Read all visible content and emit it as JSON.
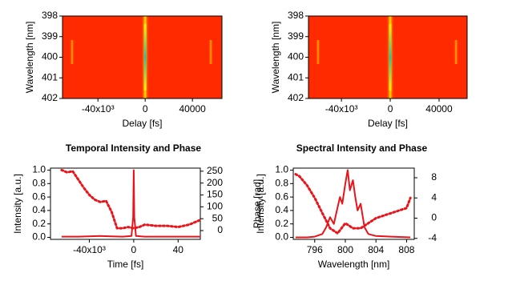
{
  "chart_data": [
    {
      "type": "heatmap",
      "xlabel": "Delay [fs]",
      "ylabel": "Wavelength [nm]",
      "xlim": [
        -70000,
        65000
      ],
      "xticks": [
        {
          "value": -40000,
          "label": "-40x10³"
        },
        0,
        40000
      ],
      "ylim": [
        402,
        398
      ],
      "yticks": [
        398,
        399,
        400,
        401,
        402
      ],
      "color": "#ff2a00"
    },
    {
      "type": "heatmap",
      "xlabel": "Delay [fs]",
      "ylabel": "Wavelength [nm]",
      "xlim": [
        -67000,
        63000
      ],
      "xticks": [
        {
          "value": -40000,
          "label": "-40x10³"
        },
        0,
        40000
      ],
      "ylim": [
        402,
        398
      ],
      "yticks": [
        398,
        399,
        400,
        401,
        402
      ],
      "color": "#ff2a00"
    },
    {
      "type": "line",
      "title": "Temporal Intensity and Phase",
      "xlabel": "Time [fs]",
      "ylabel": "Intensity [a.u.]",
      "y2label": "Phase [rad]",
      "xlim": [
        -75000,
        60000
      ],
      "xticks": [
        {
          "value": -40000,
          "label": "-40x10³"
        },
        0,
        {
          "value": 40000,
          "label": "40"
        }
      ],
      "ylim": [
        -0.03,
        1.03
      ],
      "yticks": [
        {
          "value": 0,
          "label": "0.0"
        },
        {
          "value": 0.2,
          "label": "0.2"
        },
        {
          "value": 0.4,
          "label": "0.4"
        },
        {
          "value": 0.6,
          "label": "0.6"
        },
        {
          "value": 0.8,
          "label": "0.8"
        },
        {
          "value": 1,
          "label": "1.0"
        }
      ],
      "y2lim": [
        -37,
        263
      ],
      "y2ticks": [
        0,
        50,
        100,
        150,
        200,
        250
      ],
      "series": [
        {
          "color": "#e8141a",
          "x": [
            -65000,
            -50000,
            -30000,
            -10000,
            -2000,
            -500,
            0,
            500,
            2000,
            10000,
            30000,
            50000,
            60000
          ],
          "values": [
            0.01,
            0.01,
            0.02,
            0.01,
            0.02,
            0.3,
            1.0,
            0.3,
            0.02,
            0.01,
            0.01,
            0.01,
            0.01
          ]
        },
        {
          "color": "#e8141a",
          "axis": "y2",
          "dotted": true,
          "x": [
            -65000,
            -60000,
            -55000,
            -50000,
            -45000,
            -40000,
            -35000,
            -30000,
            -25000,
            -20000,
            -15000,
            -10000,
            -5000,
            0,
            5000,
            10000,
            20000,
            30000,
            40000,
            50000,
            60000
          ],
          "values": [
            255,
            245,
            250,
            215,
            180,
            150,
            130,
            120,
            125,
            80,
            10,
            10,
            15,
            10,
            15,
            25,
            20,
            20,
            15,
            25,
            45
          ]
        }
      ]
    },
    {
      "type": "line",
      "title": "Spectral Intensity and Phase",
      "xlabel": "Wavelength [nm]",
      "ylabel": "Intensity [a.u.]",
      "xlim": [
        793.2,
        809
      ],
      "xticks": [
        796,
        800,
        804,
        808
      ],
      "ylim": [
        -0.03,
        1.03
      ],
      "yticks": [
        {
          "value": 0,
          "label": "0.0"
        },
        {
          "value": 0.2,
          "label": "0.2"
        },
        {
          "value": 0.4,
          "label": "0.4"
        },
        {
          "value": 0.6,
          "label": "0.6"
        },
        {
          "value": 0.8,
          "label": "0.8"
        },
        {
          "value": 1,
          "label": "1.0"
        }
      ],
      "y2lim": [
        -4.2,
        9.9
      ],
      "y2ticks": [
        -4,
        0,
        4,
        8
      ],
      "series": [
        {
          "color": "#e8141a",
          "x": [
            793.5,
            795,
            796,
            797,
            797.5,
            798,
            798.5,
            799,
            799.3,
            799.6,
            800,
            800.3,
            800.6,
            801,
            801.3,
            801.6,
            802,
            802.5,
            803,
            804,
            806,
            808.5
          ],
          "values": [
            0.0,
            0.0,
            0.01,
            0.05,
            0.15,
            0.3,
            0.2,
            0.45,
            0.6,
            0.5,
            0.8,
            1.0,
            0.7,
            0.85,
            0.6,
            0.4,
            0.5,
            0.15,
            0.05,
            0.02,
            0.01,
            0.0
          ]
        },
        {
          "color": "#e8141a",
          "axis": "y2",
          "dotted": true,
          "x": [
            793.5,
            794,
            795,
            796,
            797,
            798,
            799,
            800,
            801,
            802,
            803,
            804,
            805,
            806,
            807,
            808,
            808.5
          ],
          "values": [
            8.7,
            8.3,
            6.5,
            4,
            1,
            -2,
            -3,
            -1,
            -2,
            -2,
            -1,
            0,
            0.5,
            1,
            1.5,
            2,
            4
          ]
        }
      ]
    }
  ]
}
